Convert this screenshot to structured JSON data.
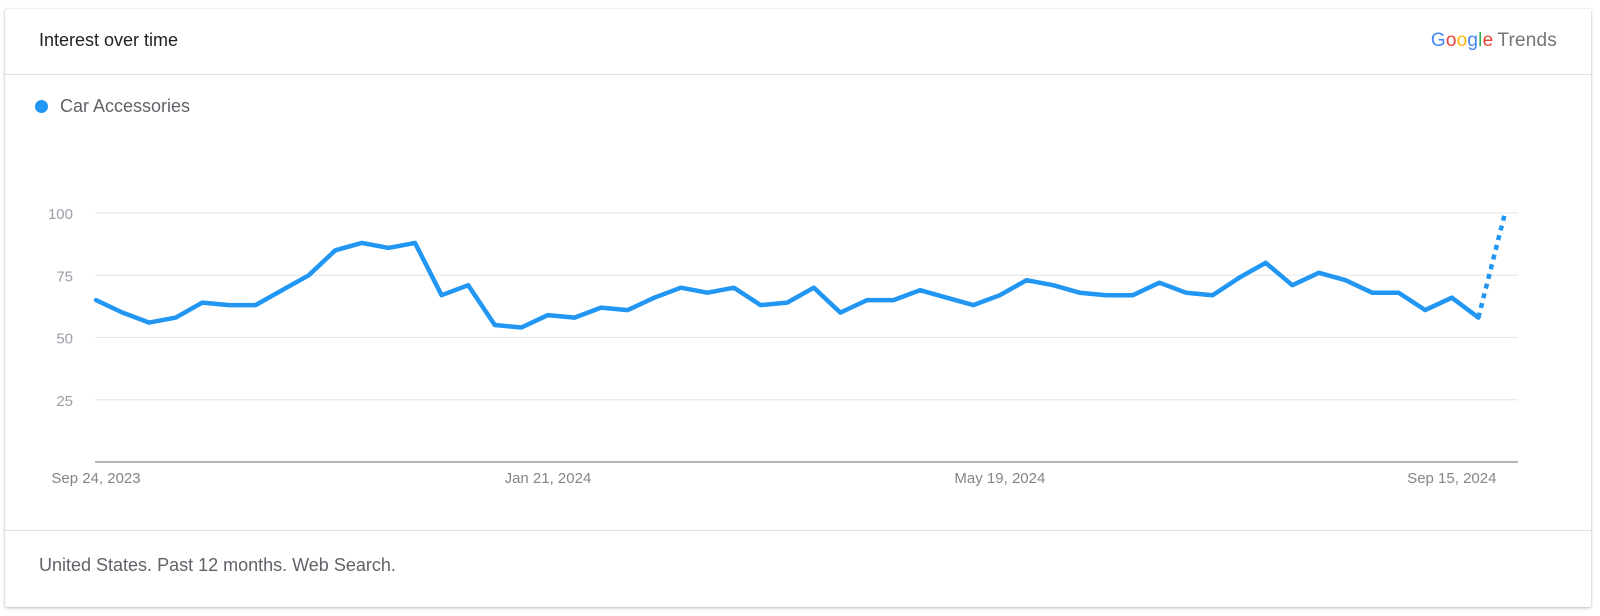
{
  "header": {
    "title": "Interest over time",
    "brand": {
      "letters": [
        {
          "char": "G",
          "color": "#4285F4"
        },
        {
          "char": "o",
          "color": "#EA4335"
        },
        {
          "char": "o",
          "color": "#FBBC05"
        },
        {
          "char": "g",
          "color": "#4285F4"
        },
        {
          "char": "l",
          "color": "#34A853"
        },
        {
          "char": "e",
          "color": "#EA4335"
        }
      ],
      "suffix": "Trends"
    }
  },
  "legend": {
    "label": "Car Accessories",
    "color": "#2196F3"
  },
  "footer": {
    "text": "United States. Past 12 months. Web Search."
  },
  "chart_data": {
    "type": "line",
    "title": "",
    "xlabel": "",
    "ylabel": "",
    "ylim": [
      0,
      100
    ],
    "yticks": [
      25,
      50,
      75,
      100
    ],
    "xtick_labels": [
      {
        "label": "Sep 24, 2023",
        "index": 0
      },
      {
        "label": "Jan 21, 2024",
        "index": 17
      },
      {
        "label": "May 19, 2024",
        "index": 34
      },
      {
        "label": "Sep 15, 2024",
        "index": 51
      }
    ],
    "grid": true,
    "legend_position": "top-left",
    "series": [
      {
        "name": "Car Accessories",
        "color": "#2196F3",
        "values": [
          65,
          60,
          56,
          58,
          64,
          63,
          63,
          69,
          75,
          85,
          88,
          86,
          88,
          67,
          71,
          55,
          54,
          59,
          58,
          62,
          61,
          66,
          70,
          68,
          70,
          63,
          64,
          70,
          60,
          65,
          65,
          69,
          66,
          63,
          67,
          73,
          71,
          68,
          67,
          67,
          72,
          68,
          67,
          74,
          80,
          71,
          76,
          73,
          68,
          68,
          61,
          66,
          58,
          100
        ],
        "partial_from_index": 52
      }
    ]
  }
}
